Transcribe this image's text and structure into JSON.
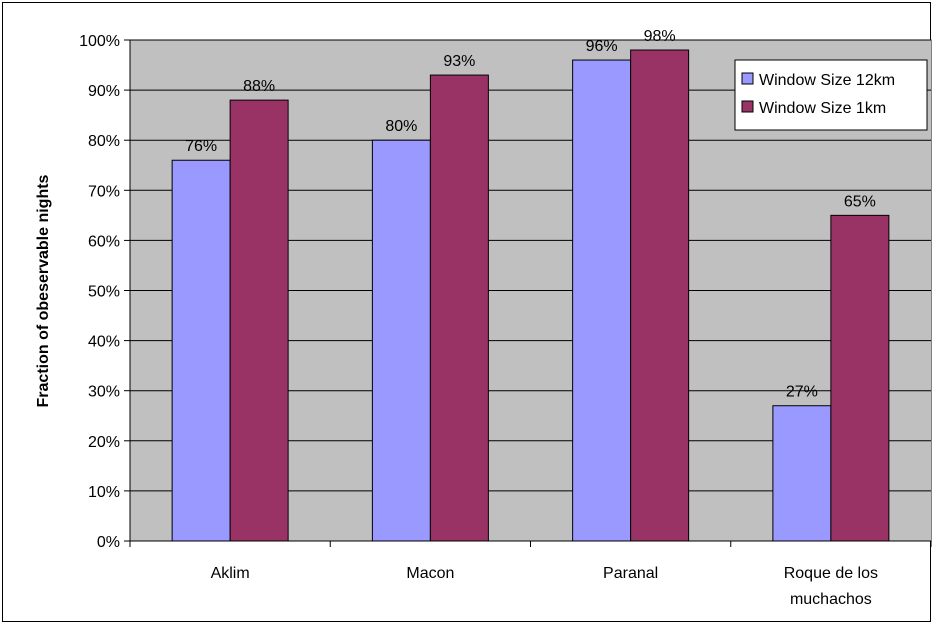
{
  "chart_data": {
    "type": "bar",
    "title": "",
    "xlabel": "",
    "ylabel": "Fraction of obeservable nights",
    "categories": [
      [
        "Aklim"
      ],
      [
        "Macon"
      ],
      [
        "Paranal"
      ],
      [
        "Roque de los",
        "muchachos"
      ]
    ],
    "series": [
      {
        "name": "Window Size 12km",
        "color": "#9999FF",
        "values": [
          0.76,
          0.8,
          0.96,
          0.27
        ],
        "labels": [
          "76%",
          "80%",
          "96%",
          "27%"
        ]
      },
      {
        "name": "Window Size 1km",
        "color": "#993366",
        "values": [
          0.88,
          0.93,
          0.98,
          0.65
        ],
        "labels": [
          "88%",
          "93%",
          "98%",
          "65%"
        ]
      }
    ],
    "ylim": [
      0,
      1
    ],
    "yticks": [
      "0%",
      "10%",
      "20%",
      "30%",
      "40%",
      "50%",
      "60%",
      "70%",
      "80%",
      "90%",
      "100%"
    ],
    "grid": true,
    "plot_background": "#C0C0C0",
    "legend_position": "top-right"
  }
}
